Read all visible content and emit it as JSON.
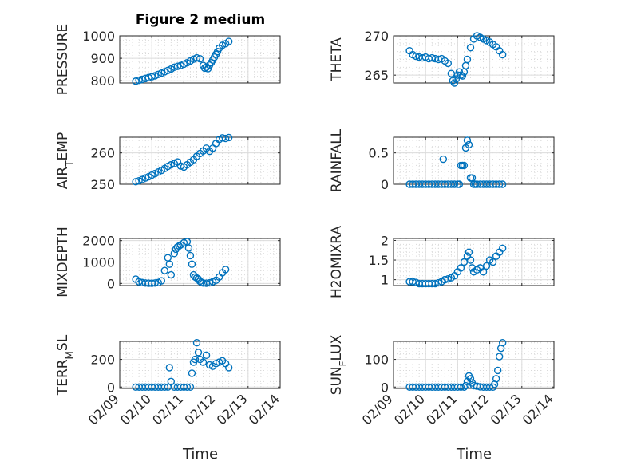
{
  "figure": {
    "title": "Figure 2 medium",
    "xlabel": "Time",
    "x_ticks": [
      "02/09",
      "02/10",
      "02/11",
      "02/12",
      "02/13",
      "02/14"
    ]
  },
  "colors": {
    "marker": "#0072BD",
    "grid": "#d9d9d9",
    "axis": "#262626"
  },
  "chart_data": [
    {
      "type": "scatter",
      "ylabel": "PRESSURE",
      "ylim": [
        790,
        1000
      ],
      "yticks": [
        "800",
        "900",
        "1000"
      ],
      "yticks_values": [
        800,
        900,
        1000
      ],
      "x": [
        0.5,
        0.6,
        0.7,
        0.8,
        0.9,
        1.0,
        1.1,
        1.2,
        1.3,
        1.4,
        1.5,
        1.6,
        1.7,
        1.8,
        1.9,
        2.0,
        2.1,
        2.2,
        2.3,
        2.4,
        2.5,
        2.6,
        2.65,
        2.7,
        2.75,
        2.8,
        2.85,
        2.9,
        2.95,
        3.0,
        3.05,
        3.1,
        3.2,
        3.3,
        3.4
      ],
      "y": [
        798,
        802,
        806,
        810,
        814,
        818,
        822,
        828,
        834,
        840,
        846,
        852,
        860,
        864,
        868,
        874,
        880,
        888,
        896,
        902,
        898,
        868,
        856,
        860,
        854,
        870,
        880,
        892,
        905,
        918,
        930,
        945,
        958,
        965,
        975
      ]
    },
    {
      "type": "scatter",
      "ylabel": "THETA",
      "ylim": [
        264,
        270
      ],
      "yticks": [
        "265",
        "270"
      ],
      "yticks_values": [
        265,
        270
      ],
      "x": [
        0.5,
        0.6,
        0.7,
        0.8,
        0.9,
        1.0,
        1.1,
        1.2,
        1.3,
        1.4,
        1.5,
        1.6,
        1.7,
        1.8,
        1.85,
        1.9,
        1.95,
        2.0,
        2.05,
        2.1,
        2.15,
        2.2,
        2.25,
        2.3,
        2.4,
        2.5,
        2.6,
        2.7,
        2.8,
        2.9,
        3.0,
        3.1,
        3.2,
        3.3,
        3.4
      ],
      "y": [
        268.1,
        267.6,
        267.4,
        267.3,
        267.2,
        267.3,
        267.1,
        267.2,
        267.1,
        267.0,
        267.1,
        266.8,
        266.5,
        265.2,
        264.3,
        264.0,
        264.5,
        265.0,
        265.4,
        265.0,
        264.9,
        265.4,
        266.2,
        267.0,
        268.5,
        269.6,
        270.0,
        269.8,
        269.6,
        269.4,
        269.2,
        268.9,
        268.6,
        268.1,
        267.6
      ]
    },
    {
      "type": "scatter",
      "ylabel": "AIR_TEMP",
      "ylim": [
        250,
        265
      ],
      "yticks": [
        "250",
        "260"
      ],
      "yticks_values": [
        250,
        260
      ],
      "x": [
        0.5,
        0.6,
        0.7,
        0.8,
        0.9,
        1.0,
        1.1,
        1.2,
        1.3,
        1.4,
        1.5,
        1.6,
        1.7,
        1.8,
        1.9,
        2.0,
        2.1,
        2.2,
        2.3,
        2.4,
        2.5,
        2.6,
        2.7,
        2.8,
        2.9,
        3.0,
        3.1,
        3.2,
        3.3,
        3.4
      ],
      "y": [
        250.8,
        251.1,
        251.5,
        252,
        252.4,
        252.9,
        253.4,
        253.9,
        254.4,
        255,
        255.7,
        256.2,
        256.6,
        257.1,
        255.8,
        255.5,
        256.2,
        257,
        257.8,
        258.9,
        259.8,
        260.6,
        261.5,
        260.5,
        261.5,
        263,
        264.3,
        264.8,
        264.6,
        264.9
      ]
    },
    {
      "type": "scatter",
      "ylabel": "RAINFALL",
      "ylim": [
        0,
        0.75
      ],
      "yticks": [
        "0",
        "0.5"
      ],
      "yticks_values": [
        0,
        0.5
      ],
      "x": [
        0.5,
        0.6,
        0.7,
        0.8,
        0.9,
        1.0,
        1.1,
        1.2,
        1.3,
        1.4,
        1.5,
        1.55,
        1.6,
        1.7,
        1.8,
        1.9,
        2.0,
        2.05,
        2.1,
        2.15,
        2.2,
        2.25,
        2.3,
        2.35,
        2.4,
        2.45,
        2.5,
        2.55,
        2.6,
        2.7,
        2.8,
        2.9,
        3.0,
        3.1,
        3.2,
        3.3,
        3.4
      ],
      "y": [
        0,
        0,
        0,
        0,
        0,
        0,
        0,
        0,
        0,
        0,
        0,
        0.4,
        0,
        0,
        0,
        0,
        0,
        0,
        0.3,
        0.3,
        0.3,
        0.58,
        0.7,
        0.63,
        0.1,
        0.1,
        0,
        0,
        0,
        0,
        0,
        0,
        0,
        0,
        0,
        0,
        0
      ]
    },
    {
      "type": "scatter",
      "ylabel": "MIXDEPTH",
      "ylim": [
        -100,
        2100
      ],
      "yticks": [
        "0",
        "1000",
        "2000"
      ],
      "yticks_values": [
        0,
        1000,
        2000
      ],
      "x": [
        0.5,
        0.6,
        0.7,
        0.8,
        0.9,
        1.0,
        1.1,
        1.2,
        1.3,
        1.4,
        1.5,
        1.55,
        1.6,
        1.7,
        1.75,
        1.8,
        1.85,
        1.9,
        2.0,
        2.1,
        2.15,
        2.2,
        2.25,
        2.3,
        2.35,
        2.4,
        2.45,
        2.5,
        2.55,
        2.6,
        2.7,
        2.8,
        2.9,
        3.0,
        3.1,
        3.2,
        3.3
      ],
      "y": [
        200,
        80,
        40,
        20,
        10,
        10,
        20,
        40,
        120,
        600,
        1200,
        900,
        400,
        1400,
        1600,
        1700,
        1750,
        1800,
        1900,
        1950,
        1650,
        1300,
        900,
        400,
        300,
        250,
        200,
        100,
        50,
        20,
        10,
        30,
        80,
        150,
        300,
        500,
        650
      ]
    },
    {
      "type": "scatter",
      "ylabel": "H2OMIXRA",
      "ylim": [
        0.85,
        2.05
      ],
      "yticks": [
        "1",
        "1.5",
        "2"
      ],
      "yticks_values": [
        1,
        1.5,
        2
      ],
      "x": [
        0.5,
        0.6,
        0.7,
        0.8,
        0.9,
        1.0,
        1.1,
        1.2,
        1.3,
        1.4,
        1.5,
        1.6,
        1.7,
        1.8,
        1.9,
        2.0,
        2.1,
        2.2,
        2.3,
        2.35,
        2.4,
        2.45,
        2.5,
        2.6,
        2.7,
        2.8,
        2.9,
        3.0,
        3.1,
        3.2,
        3.3,
        3.4
      ],
      "y": [
        0.95,
        0.95,
        0.93,
        0.9,
        0.9,
        0.9,
        0.9,
        0.9,
        0.9,
        0.92,
        0.95,
        1.0,
        1.02,
        1.05,
        1.1,
        1.2,
        1.3,
        1.45,
        1.6,
        1.7,
        1.5,
        1.3,
        1.2,
        1.25,
        1.3,
        1.2,
        1.35,
        1.5,
        1.45,
        1.6,
        1.7,
        1.8
      ]
    },
    {
      "type": "scatter",
      "ylabel": "TERR_MSL",
      "ylim": [
        -10,
        330
      ],
      "yticks": [
        "0",
        "200"
      ],
      "yticks_values": [
        0,
        200
      ],
      "x": [
        0.5,
        0.6,
        0.7,
        0.8,
        0.9,
        1.0,
        1.1,
        1.2,
        1.3,
        1.4,
        1.5,
        1.55,
        1.6,
        1.7,
        1.8,
        1.9,
        2.0,
        2.1,
        2.2,
        2.25,
        2.3,
        2.35,
        2.4,
        2.45,
        2.5,
        2.6,
        2.7,
        2.8,
        2.9,
        3.0,
        3.1,
        3.2,
        3.3,
        3.4
      ],
      "y": [
        0,
        0,
        0,
        0,
        0,
        0,
        0,
        0,
        0,
        0,
        0,
        140,
        40,
        0,
        0,
        0,
        0,
        0,
        0,
        100,
        180,
        200,
        320,
        250,
        200,
        180,
        230,
        160,
        150,
        170,
        180,
        190,
        170,
        140
      ]
    },
    {
      "type": "scatter",
      "ylabel": "SUN_FLUX",
      "ylim": [
        -5,
        165
      ],
      "yticks": [
        "0",
        "100"
      ],
      "yticks_values": [
        0,
        100
      ],
      "x": [
        0.5,
        0.6,
        0.7,
        0.8,
        0.9,
        1.0,
        1.1,
        1.2,
        1.3,
        1.4,
        1.5,
        1.6,
        1.7,
        1.8,
        1.9,
        2.0,
        2.1,
        2.2,
        2.25,
        2.3,
        2.35,
        2.4,
        2.45,
        2.5,
        2.6,
        2.7,
        2.8,
        2.9,
        3.0,
        3.1,
        3.15,
        3.2,
        3.25,
        3.3,
        3.35,
        3.4
      ],
      "y": [
        0,
        0,
        0,
        0,
        0,
        0,
        0,
        0,
        0,
        0,
        0,
        0,
        0,
        0,
        0,
        0,
        0,
        0,
        5,
        20,
        40,
        30,
        15,
        5,
        3,
        1,
        0,
        0,
        0,
        0,
        10,
        30,
        60,
        110,
        140,
        160
      ]
    }
  ]
}
